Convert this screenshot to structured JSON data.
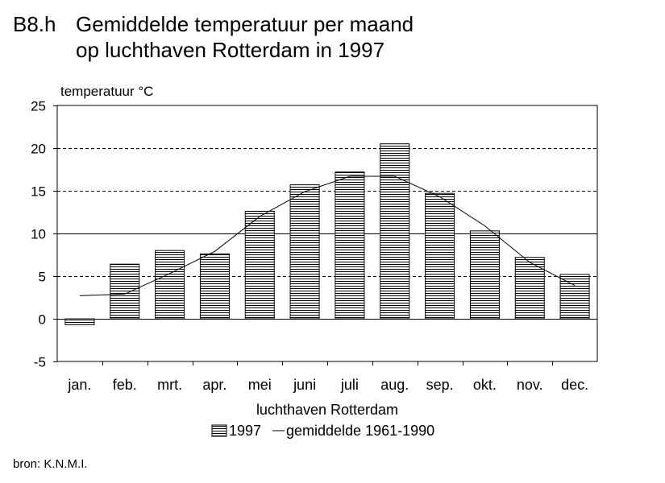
{
  "header": {
    "code": "B8.h",
    "title": "Gemiddelde temperatuur per maand\nop luchthaven Rotterdam in 1997"
  },
  "chart_data": {
    "type": "bar",
    "title": "Gemiddelde temperatuur per maand op luchthaven Rotterdam in 1997",
    "ylabel": "temperatuur °C",
    "xlabel": "luchthaven Rotterdam",
    "ylim": [
      -5,
      25
    ],
    "yticks": [
      -5,
      0,
      5,
      10,
      15,
      20,
      25
    ],
    "grid": "dashed horizontal at 5, 15, 20; solid at 0 and 10",
    "categories": [
      "jan.",
      "feb.",
      "mrt.",
      "apr.",
      "mei",
      "juni",
      "juli",
      "aug.",
      "sep.",
      "okt.",
      "nov.",
      "dec."
    ],
    "series": [
      {
        "name": "1997",
        "kind": "bar",
        "fill": "horizontal-hatch",
        "values": [
          -0.7,
          6.4,
          8.0,
          7.6,
          12.6,
          15.7,
          17.2,
          20.5,
          14.7,
          10.3,
          7.2,
          5.2
        ]
      },
      {
        "name": "gemiddelde 1961-1990",
        "kind": "line",
        "values": [
          2.7,
          2.9,
          5.3,
          7.9,
          12.0,
          14.9,
          16.7,
          16.7,
          14.3,
          10.9,
          6.6,
          3.9
        ]
      }
    ],
    "legend": {
      "placement": "bottom-center",
      "items": [
        "1997",
        "gemiddelde 1961-1990"
      ]
    },
    "colors": {
      "ink": "#000000",
      "background": "#ffffff"
    }
  },
  "footer": {
    "source": "bron: K.N.M.I."
  }
}
